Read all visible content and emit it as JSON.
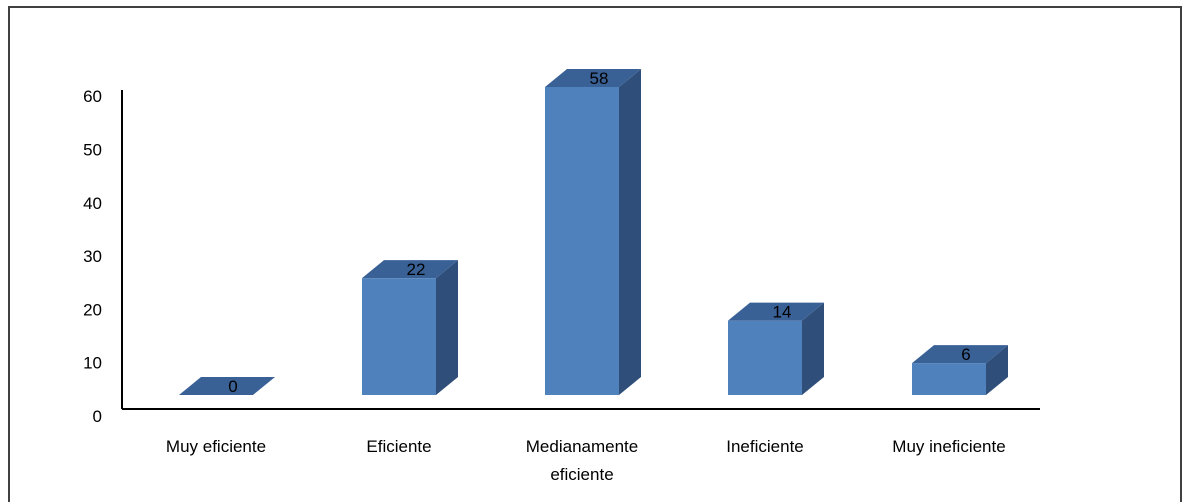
{
  "chart_data": {
    "type": "bar",
    "style": "3d-column",
    "categories": [
      [
        "Muy eficiente"
      ],
      [
        "Eficiente"
      ],
      [
        "Medianamente",
        "eficiente"
      ],
      [
        "Ineficiente"
      ],
      [
        "Muy ineficiente"
      ]
    ],
    "values": [
      0,
      22,
      58,
      14,
      6
    ],
    "data_labels": [
      "0",
      "22",
      "58",
      "14",
      "6"
    ],
    "yticks": [
      "0",
      "10",
      "20",
      "30",
      "40",
      "50",
      "60"
    ],
    "ylim": [
      0,
      60
    ],
    "grid": false,
    "legend": "none",
    "colors": {
      "front": "#4f81bd",
      "side": "#2f4f7a",
      "top": "#3a6196",
      "axis": "#000000"
    }
  }
}
